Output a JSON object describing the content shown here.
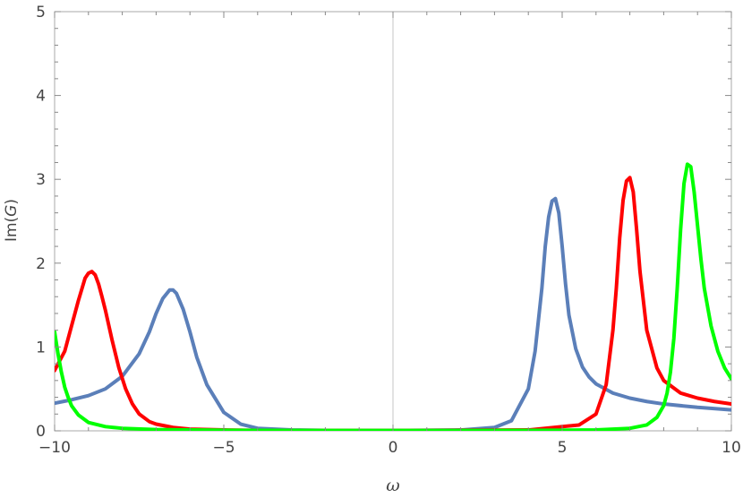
{
  "chart_data": {
    "type": "line",
    "title": "",
    "xlabel": "ω",
    "ylabel_prefix": "Im(",
    "ylabel_var": "G",
    "ylabel_suffix": ")",
    "xlim": [
      -10,
      10
    ],
    "ylim": [
      0,
      5
    ],
    "x_ticks": [
      -10,
      -5,
      0,
      5,
      10
    ],
    "x_tick_labels": [
      "−10",
      "−5",
      "0",
      "5",
      "10"
    ],
    "y_ticks": [
      0,
      1,
      2,
      3,
      4,
      5
    ],
    "y_tick_labels": [
      "0",
      "1",
      "2",
      "3",
      "4",
      "5"
    ],
    "grid": false,
    "series": [
      {
        "color": "#5b7fb9",
        "x": [
          -10,
          -9.5,
          -9,
          -8.5,
          -8,
          -7.5,
          -7.2,
          -7,
          -6.8,
          -6.6,
          -6.5,
          -6.4,
          -6.2,
          -6,
          -5.8,
          -5.5,
          -5,
          -4.5,
          -4,
          -3,
          -2,
          0,
          2,
          3,
          3.5,
          4,
          4.2,
          4.4,
          4.5,
          4.6,
          4.7,
          4.8,
          4.9,
          5,
          5.1,
          5.2,
          5.4,
          5.6,
          5.8,
          6,
          6.5,
          7,
          7.5,
          8,
          9,
          10
        ],
        "y": [
          0.33,
          0.37,
          0.42,
          0.5,
          0.65,
          0.92,
          1.18,
          1.4,
          1.58,
          1.68,
          1.68,
          1.64,
          1.45,
          1.18,
          0.88,
          0.55,
          0.22,
          0.08,
          0.03,
          0.01,
          0.005,
          0.004,
          0.01,
          0.04,
          0.12,
          0.5,
          0.95,
          1.7,
          2.2,
          2.55,
          2.74,
          2.77,
          2.6,
          2.2,
          1.75,
          1.38,
          0.98,
          0.76,
          0.64,
          0.56,
          0.45,
          0.39,
          0.35,
          0.32,
          0.28,
          0.25
        ]
      },
      {
        "color": "#ff0000",
        "x": [
          -10,
          -9.7,
          -9.5,
          -9.3,
          -9.1,
          -9,
          -8.9,
          -8.8,
          -8.7,
          -8.6,
          -8.5,
          -8.3,
          -8.1,
          -7.9,
          -7.7,
          -7.5,
          -7.2,
          -7,
          -6.5,
          -6,
          -5,
          -4,
          0,
          4,
          5.5,
          6,
          6.3,
          6.5,
          6.6,
          6.7,
          6.8,
          6.9,
          7,
          7.1,
          7.2,
          7.3,
          7.5,
          7.8,
          8,
          8.5,
          9,
          9.5,
          10
        ],
        "y": [
          0.72,
          0.95,
          1.25,
          1.55,
          1.82,
          1.88,
          1.9,
          1.86,
          1.75,
          1.6,
          1.44,
          1.08,
          0.75,
          0.5,
          0.32,
          0.2,
          0.11,
          0.08,
          0.04,
          0.02,
          0.01,
          0.005,
          0.004,
          0.01,
          0.07,
          0.2,
          0.55,
          1.2,
          1.7,
          2.3,
          2.75,
          2.98,
          3.02,
          2.85,
          2.4,
          1.9,
          1.2,
          0.75,
          0.6,
          0.45,
          0.39,
          0.35,
          0.32
        ]
      },
      {
        "color": "#00ff00",
        "x": [
          -10,
          -9.9,
          -9.8,
          -9.7,
          -9.6,
          -9.5,
          -9.3,
          -9,
          -8.5,
          -8,
          -7,
          -6,
          -4,
          0,
          4,
          6,
          7,
          7.5,
          7.8,
          8,
          8.1,
          8.2,
          8.3,
          8.4,
          8.5,
          8.6,
          8.7,
          8.8,
          8.9,
          9,
          9.1,
          9.2,
          9.4,
          9.6,
          9.8,
          10
        ],
        "y": [
          1.18,
          0.92,
          0.7,
          0.52,
          0.4,
          0.3,
          0.19,
          0.1,
          0.05,
          0.03,
          0.015,
          0.01,
          0.005,
          0.004,
          0.005,
          0.01,
          0.03,
          0.07,
          0.16,
          0.3,
          0.45,
          0.7,
          1.1,
          1.7,
          2.4,
          2.95,
          3.18,
          3.15,
          2.85,
          2.45,
          2.05,
          1.7,
          1.25,
          0.95,
          0.75,
          0.62
        ]
      }
    ]
  }
}
